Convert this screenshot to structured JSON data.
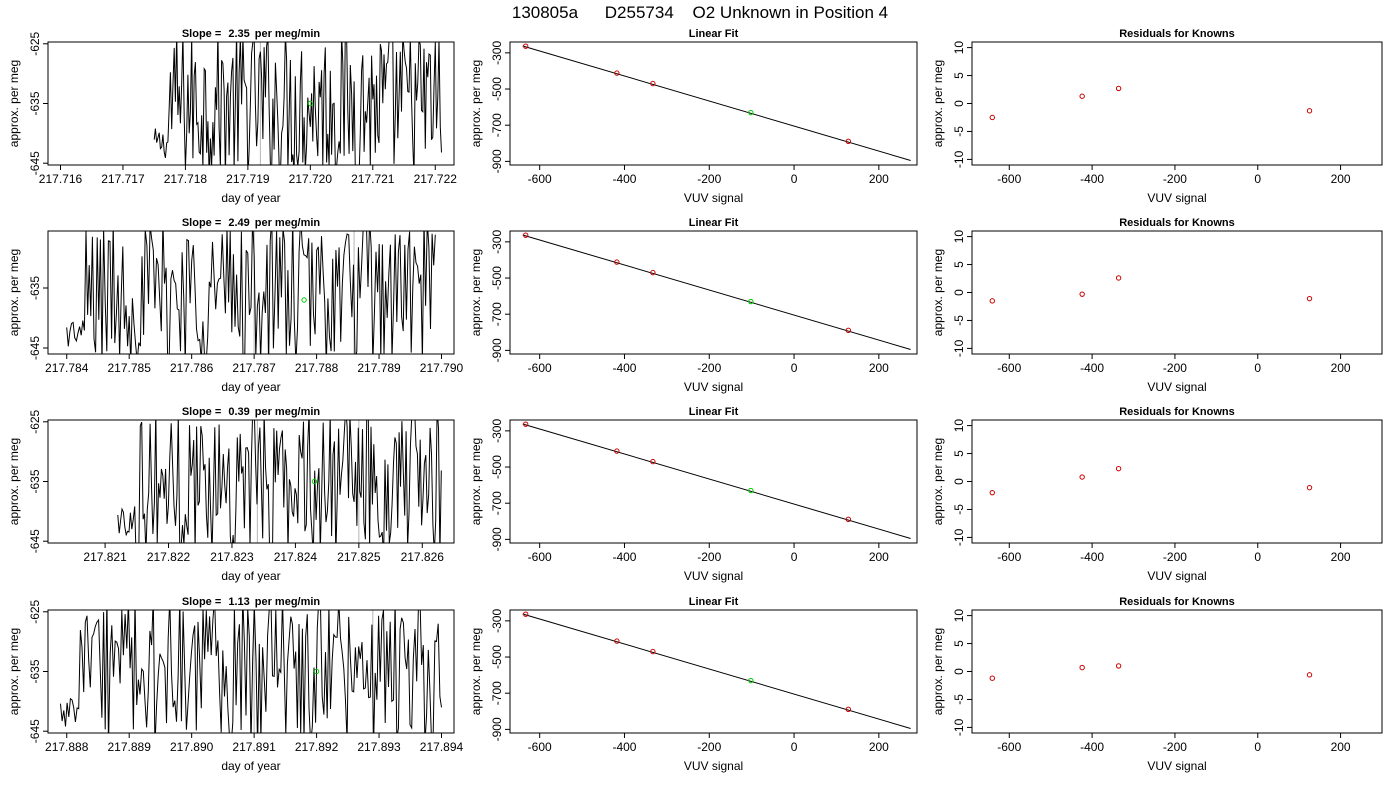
{
  "title": {
    "run": "130805a",
    "sample": "D255734",
    "desc": "O2 Unknown in Position  4"
  },
  "colors": {
    "known": "#cc0000",
    "unknown": "#00cc00",
    "vline": "#b4b4b4",
    "line": "#000000"
  },
  "chart_data": [
    {
      "type": "line",
      "panel": "trace",
      "row": 1,
      "slope_prefix": "Slope = ",
      "slope_value": "2.35",
      "slope_unit": "per meg/min",
      "xlabel": "day of year",
      "ylabel": "approx. per meg",
      "xlim": [
        217.7158,
        217.7223
      ],
      "ylim": [
        -645.3,
        -624.7
      ],
      "xticks": [
        "217.716",
        "217.717",
        "217.718",
        "217.719",
        "217.720",
        "217.721",
        "217.722"
      ],
      "yticks": [
        "-625",
        "-635",
        "-645"
      ],
      "trace_start": 217.7175,
      "trace_end": 217.7221,
      "vlines": [
        217.7192
      ],
      "unknown_point": {
        "x": 217.72,
        "y": -635.0
      }
    },
    {
      "type": "scatter",
      "panel": "fit",
      "row": 1,
      "title": "Linear Fit",
      "xlabel": "VUV signal",
      "ylabel": "approx. per meg",
      "xlim": [
        -670,
        290
      ],
      "ylim": [
        -920,
        -240
      ],
      "xticks": [
        "-600",
        "-400",
        "-200",
        "0",
        "200"
      ],
      "yticks": [
        "-300",
        "-500",
        "-700",
        "-900"
      ],
      "fit_line": {
        "x1": -640,
        "y1": -262,
        "x2": 275,
        "y2": -895
      },
      "knowns": [
        {
          "x": -633,
          "y": -263
        },
        {
          "x": -418,
          "y": -412
        },
        {
          "x": -333,
          "y": -470
        },
        {
          "x": 128,
          "y": -789
        }
      ],
      "unknown": {
        "x": -102,
        "y": -630
      }
    },
    {
      "type": "scatter",
      "panel": "resid",
      "row": 1,
      "title": "Residuals for Knowns",
      "xlabel": "VUV signal",
      "ylabel": "approx. per meg",
      "xlim": [
        -690,
        300
      ],
      "ylim": [
        -11,
        11
      ],
      "xticks": [
        "-600",
        "-400",
        "-200",
        "0",
        "200"
      ],
      "yticks": [
        "10",
        "5",
        "0",
        "-5",
        "-10"
      ],
      "points": [
        {
          "x": -641,
          "y": -2.5
        },
        {
          "x": -424,
          "y": 1.3
        },
        {
          "x": -336,
          "y": 2.7
        },
        {
          "x": 125,
          "y": -1.3
        }
      ]
    },
    {
      "type": "line",
      "panel": "trace",
      "row": 2,
      "slope_prefix": "Slope = ",
      "slope_value": "2.49",
      "slope_unit": "per meg/min",
      "xlabel": "day of year",
      "ylabel": "approx. per meg",
      "xlim": [
        217.7837,
        217.7902
      ],
      "ylim": [
        -646.0,
        -625.5
      ],
      "xticks": [
        "217.784",
        "217.785",
        "217.786",
        "217.787",
        "217.788",
        "217.789",
        "217.790"
      ],
      "yticks": [
        "-635",
        "-645"
      ],
      "trace_start": 217.784,
      "trace_end": 217.7899,
      "vlines": [
        217.787,
        217.7886
      ],
      "unknown_point": {
        "x": 217.7878,
        "y": -637.0
      }
    },
    {
      "type": "scatter",
      "panel": "fit",
      "row": 2,
      "title": "Linear Fit",
      "xlabel": "VUV signal",
      "ylabel": "approx. per meg",
      "xlim": [
        -670,
        290
      ],
      "ylim": [
        -920,
        -240
      ],
      "xticks": [
        "-600",
        "-400",
        "-200",
        "0",
        "200"
      ],
      "yticks": [
        "-300",
        "-500",
        "-700",
        "-900"
      ],
      "fit_line": {
        "x1": -640,
        "y1": -262,
        "x2": 275,
        "y2": -895
      },
      "knowns": [
        {
          "x": -633,
          "y": -263
        },
        {
          "x": -418,
          "y": -412
        },
        {
          "x": -333,
          "y": -470
        },
        {
          "x": 128,
          "y": -789
        }
      ],
      "unknown": {
        "x": -102,
        "y": -630
      }
    },
    {
      "type": "scatter",
      "panel": "resid",
      "row": 2,
      "title": "Residuals for Knowns",
      "xlabel": "VUV signal",
      "ylabel": "approx. per meg",
      "xlim": [
        -690,
        300
      ],
      "ylim": [
        -11,
        11
      ],
      "xticks": [
        "-600",
        "-400",
        "-200",
        "0",
        "200"
      ],
      "yticks": [
        "10",
        "5",
        "0",
        "-5",
        "-10"
      ],
      "points": [
        {
          "x": -641,
          "y": -1.5
        },
        {
          "x": -424,
          "y": -0.3
        },
        {
          "x": -336,
          "y": 2.6
        },
        {
          "x": 125,
          "y": -1.1
        }
      ]
    },
    {
      "type": "line",
      "panel": "trace",
      "row": 3,
      "slope_prefix": "Slope = ",
      "slope_value": "0.39",
      "slope_unit": "per meg/min",
      "xlabel": "day of year",
      "ylabel": "approx. per meg",
      "xlim": [
        217.8201,
        217.8265
      ],
      "ylim": [
        -645.3,
        -624.7
      ],
      "xticks": [
        "217.821",
        "217.822",
        "217.823",
        "217.824",
        "217.825",
        "217.826"
      ],
      "yticks": [
        "-625",
        "-635",
        "-645"
      ],
      "trace_start": 217.8212,
      "trace_end": 217.8263,
      "vlines": [
        217.8234,
        217.825
      ],
      "unknown_point": {
        "x": 217.8243,
        "y": -635.0
      }
    },
    {
      "type": "scatter",
      "panel": "fit",
      "row": 3,
      "title": "Linear Fit",
      "xlabel": "VUV signal",
      "ylabel": "approx. per meg",
      "xlim": [
        -670,
        290
      ],
      "ylim": [
        -920,
        -240
      ],
      "xticks": [
        "-600",
        "-400",
        "-200",
        "0",
        "200"
      ],
      "yticks": [
        "-300",
        "-500",
        "-700",
        "-900"
      ],
      "fit_line": {
        "x1": -640,
        "y1": -262,
        "x2": 275,
        "y2": -895
      },
      "knowns": [
        {
          "x": -633,
          "y": -263
        },
        {
          "x": -418,
          "y": -412
        },
        {
          "x": -333,
          "y": -470
        },
        {
          "x": 128,
          "y": -789
        }
      ],
      "unknown": {
        "x": -102,
        "y": -630
      }
    },
    {
      "type": "scatter",
      "panel": "resid",
      "row": 3,
      "title": "Residuals for Knowns",
      "xlabel": "VUV signal",
      "ylabel": "approx. per meg",
      "xlim": [
        -690,
        300
      ],
      "ylim": [
        -11,
        11
      ],
      "xticks": [
        "-600",
        "-400",
        "-200",
        "0",
        "200"
      ],
      "yticks": [
        "10",
        "5",
        "0",
        "-5",
        "-10"
      ],
      "points": [
        {
          "x": -641,
          "y": -2.0
        },
        {
          "x": -424,
          "y": 0.8
        },
        {
          "x": -336,
          "y": 2.3
        },
        {
          "x": 125,
          "y": -1.1
        }
      ]
    },
    {
      "type": "line",
      "panel": "trace",
      "row": 4,
      "slope_prefix": "Slope = ",
      "slope_value": "1.13",
      "slope_unit": "per meg/min",
      "xlabel": "day of year",
      "ylabel": "approx. per meg",
      "xlim": [
        217.8877,
        217.8942
      ],
      "ylim": [
        -645.3,
        -624.7
      ],
      "xticks": [
        "217.888",
        "217.889",
        "217.890",
        "217.891",
        "217.892",
        "217.893",
        "217.894"
      ],
      "yticks": [
        "-625",
        "-635",
        "-645"
      ],
      "trace_start": 217.8879,
      "trace_end": 217.894,
      "vlines": [
        217.891,
        217.8929
      ],
      "unknown_point": {
        "x": 217.892,
        "y": -635.0
      }
    },
    {
      "type": "scatter",
      "panel": "fit",
      "row": 4,
      "title": "Linear Fit",
      "xlabel": "VUV signal",
      "ylabel": "approx. per meg",
      "xlim": [
        -670,
        290
      ],
      "ylim": [
        -920,
        -240
      ],
      "xticks": [
        "-600",
        "-400",
        "-200",
        "0",
        "200"
      ],
      "yticks": [
        "-300",
        "-500",
        "-700",
        "-900"
      ],
      "fit_line": {
        "x1": -640,
        "y1": -262,
        "x2": 275,
        "y2": -895
      },
      "knowns": [
        {
          "x": -633,
          "y": -263
        },
        {
          "x": -418,
          "y": -412
        },
        {
          "x": -333,
          "y": -470
        },
        {
          "x": 128,
          "y": -789
        }
      ],
      "unknown": {
        "x": -102,
        "y": -630
      }
    },
    {
      "type": "scatter",
      "panel": "resid",
      "row": 4,
      "title": "Residuals for Knowns",
      "xlabel": "VUV signal",
      "ylabel": "approx. per meg",
      "xlim": [
        -690,
        300
      ],
      "ylim": [
        -11,
        11
      ],
      "xticks": [
        "-600",
        "-400",
        "-200",
        "0",
        "200"
      ],
      "yticks": [
        "10",
        "5",
        "0",
        "-5",
        "-10"
      ],
      "points": [
        {
          "x": -641,
          "y": -1.2
        },
        {
          "x": -424,
          "y": 0.7
        },
        {
          "x": -336,
          "y": 1.0
        },
        {
          "x": 125,
          "y": -0.6
        }
      ]
    }
  ]
}
